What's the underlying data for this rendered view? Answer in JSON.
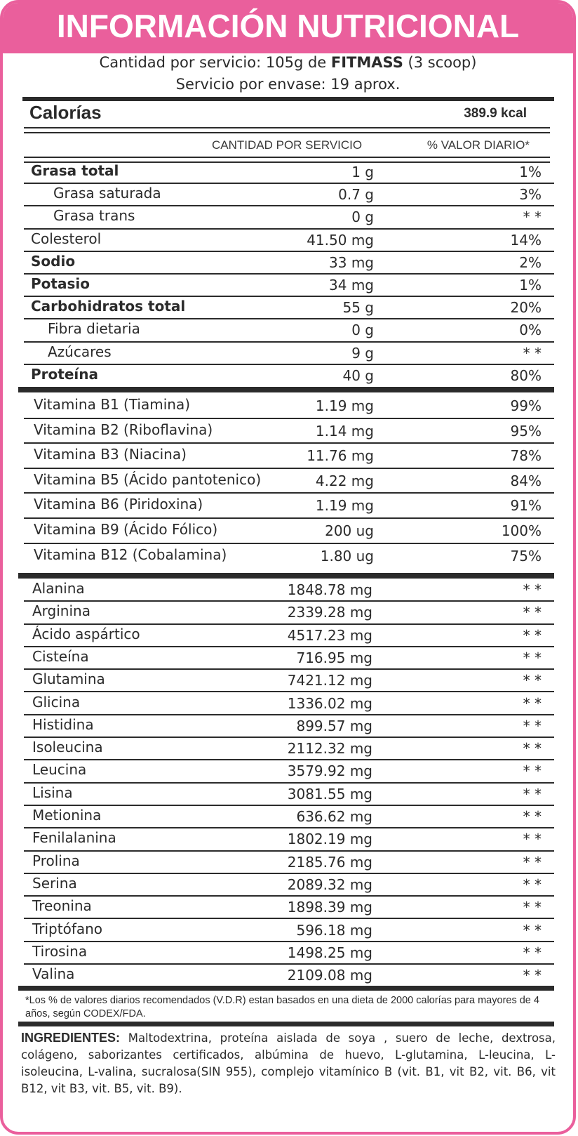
{
  "header": {
    "title": "INFORMACIÓN NUTRICIONAL",
    "serving_prefix": "Cantidad por servicio: 105g de ",
    "serving_brand": "FITMASS",
    "serving_suffix": " (3 scoop)",
    "servings_per_container": "Servicio por envase: 19 aprox."
  },
  "calories": {
    "label": "Calorías",
    "value": "389.9 kcal"
  },
  "columns": {
    "amount": "CANTIDAD POR SERVICIO",
    "daily_value": "% VALOR DIARIO*"
  },
  "macros": [
    {
      "name": "Grasa total",
      "amount": "1 g",
      "pct": "1%",
      "bold": true,
      "indent": 0
    },
    {
      "name": "Grasa saturada",
      "amount": "0.7 g",
      "pct": "3%",
      "bold": false,
      "indent": 2
    },
    {
      "name": "Grasa trans",
      "amount": "0 g",
      "pct": "* *",
      "bold": false,
      "indent": 2
    },
    {
      "name": "Colesterol",
      "amount": "41.50 mg",
      "pct": "14%",
      "bold": false,
      "indent": 0
    },
    {
      "name": "Sodio",
      "amount": "33 mg",
      "pct": "2%",
      "bold": true,
      "indent": 0
    },
    {
      "name": "Potasio",
      "amount": "34 mg",
      "pct": "1%",
      "bold": true,
      "indent": 0
    },
    {
      "name": "Carbohidratos total",
      "amount": "55 g",
      "pct": "20%",
      "bold": true,
      "indent": 0
    },
    {
      "name": "Fibra dietaria",
      "amount": "0 g",
      "pct": "0%",
      "bold": false,
      "indent": 1
    },
    {
      "name": "Azúcares",
      "amount": "9 g",
      "pct": "* *",
      "bold": false,
      "indent": 1
    },
    {
      "name": "Proteína",
      "amount": "40 g",
      "pct": "80%",
      "bold": true,
      "indent": 0
    }
  ],
  "vitamins": [
    {
      "name": "Vitamina B1 (Tiamina)",
      "amount": "1.19 mg",
      "pct": "99%"
    },
    {
      "name": "Vitamina B2 (Riboflavina)",
      "amount": "1.14 mg",
      "pct": "95%"
    },
    {
      "name": "Vitamina B3 (Niacina)",
      "amount": "11.76 mg",
      "pct": "78%"
    },
    {
      "name": "Vitamina B5 (Ácido pantotenico)",
      "amount": "4.22 mg",
      "pct": "84%"
    },
    {
      "name": "Vitamina B6 (Piridoxina)",
      "amount": "1.19 mg",
      "pct": "91%"
    },
    {
      "name": "Vitamina B9 (Ácido Fólico)",
      "amount": "200 ug",
      "pct": "100%"
    },
    {
      "name": "Vitamina B12 (Cobalamina)",
      "amount": "1.80 ug",
      "pct": "75%"
    }
  ],
  "amino_acids": [
    {
      "name": "Alanina",
      "amount": "1848.78 mg",
      "pct": "* *"
    },
    {
      "name": "Arginina",
      "amount": "2339.28 mg",
      "pct": "* *"
    },
    {
      "name": "Ácido aspártico",
      "amount": "4517.23 mg",
      "pct": "* *"
    },
    {
      "name": "Cisteína",
      "amount": "716.95 mg",
      "pct": "* *"
    },
    {
      "name": "Glutamina",
      "amount": "7421.12 mg",
      "pct": "* *"
    },
    {
      "name": "Glicina",
      "amount": "1336.02 mg",
      "pct": "* *"
    },
    {
      "name": "Histidina",
      "amount": "899.57 mg",
      "pct": "* *"
    },
    {
      "name": "Isoleucina",
      "amount": "2112.32 mg",
      "pct": "* *"
    },
    {
      "name": "Leucina",
      "amount": "3579.92 mg",
      "pct": "* *"
    },
    {
      "name": "Lisina",
      "amount": "3081.55 mg",
      "pct": "* *"
    },
    {
      "name": "Metionina",
      "amount": "636.62 mg",
      "pct": "* *"
    },
    {
      "name": "Fenilalanina",
      "amount": "1802.19 mg",
      "pct": "* *"
    },
    {
      "name": "Prolina",
      "amount": "2185.76 mg",
      "pct": "* *"
    },
    {
      "name": "Serina",
      "amount": "2089.32 mg",
      "pct": "* *"
    },
    {
      "name": "Treonina",
      "amount": "1898.39 mg",
      "pct": "* *"
    },
    {
      "name": "Triptófano",
      "amount": "596.18 mg",
      "pct": "* *"
    },
    {
      "name": "Tirosina",
      "amount": "1498.25 mg",
      "pct": "* *"
    },
    {
      "name": "Valina",
      "amount": "2109.08 mg",
      "pct": "* *"
    }
  ],
  "footnote": "*Los % de valores diarios recomendados (V.D.R) estan basados en una dieta de 2000 calorías para mayores de 4 años, según CODEX/FDA.",
  "ingredients": {
    "label": "INGREDIENTES:",
    "text": " Maltodextrina, proteína aislada de soya , suero de leche, dextrosa, colágeno, saborizantes certificados, albúmina de huevo, L-glutamina, L-leucina, L-isoleucina, L-valina, sucralosa(SIN 955), complejo vitamínico B (vit. B1, vit B2, vit. B6, vit B12, vit B3, vit. B5, vit. B9)."
  },
  "colors": {
    "brand_pink": "#ea5f9c",
    "text_dark": "#2b2b2b",
    "background": "#ffffff"
  }
}
